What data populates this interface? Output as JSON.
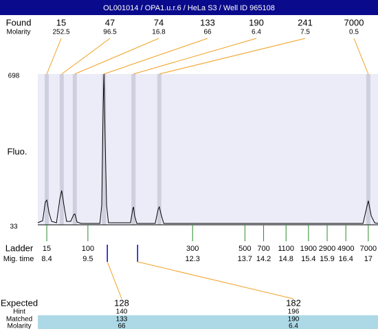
{
  "header": {
    "title": "OL001014 / OPA1.u.r.6 / HeLa S3 / Well ID 965108"
  },
  "found": {
    "label": "Found",
    "molarity_label": "Molarity",
    "peaks": [
      {
        "size": 15,
        "molarity": 252.5,
        "time": 8.4
      },
      {
        "size": 47,
        "molarity": 96.5,
        "time": 8.8
      },
      {
        "size": 74,
        "molarity": 16.8,
        "time": 9.15
      },
      {
        "size": 133,
        "molarity": 66,
        "time": 9.93
      },
      {
        "size": 190,
        "molarity": 6.4,
        "time": 10.72
      },
      {
        "size": 241,
        "molarity": 7.5,
        "time": 11.41
      },
      {
        "size": 7000,
        "molarity": 0.5,
        "time": 17
      }
    ]
  },
  "axis": {
    "label": "Fluo.",
    "ylim": [
      33,
      698
    ],
    "yticks": [
      698,
      33
    ],
    "xlim": [
      8.16,
      17.26
    ]
  },
  "trace": {
    "x": [
      8.16,
      8.29,
      8.36,
      8.4,
      8.46,
      8.53,
      8.66,
      8.75,
      8.8,
      8.86,
      8.93,
      9.04,
      9.12,
      9.15,
      9.21,
      9.32,
      9.82,
      9.87,
      9.91,
      9.93,
      9.96,
      10.0,
      10.05,
      10.64,
      10.7,
      10.72,
      10.75,
      10.81,
      11.3,
      11.38,
      11.41,
      11.47,
      11.53,
      16.86,
      16.95,
      17.0,
      17.08,
      17.17,
      17.26
    ],
    "y": [
      42,
      51,
      133,
      142,
      87,
      48,
      42,
      148,
      184,
      118,
      48,
      48,
      78,
      81,
      45,
      39,
      39,
      118,
      571,
      698,
      420,
      118,
      42,
      42,
      103,
      112,
      72,
      39,
      39,
      103,
      112,
      72,
      39,
      39,
      103,
      139,
      72,
      42,
      39
    ]
  },
  "ladder": {
    "label": "Ladder",
    "time_label": "Mig. time",
    "bands": [
      {
        "size": 15,
        "time": 8.4
      },
      {
        "size": 100,
        "time": 9.5
      },
      {
        "size": 300,
        "time": 12.3
      },
      {
        "size": 500,
        "time": 13.7
      },
      {
        "size": 700,
        "time": 14.2
      },
      {
        "size": 1100,
        "time": 14.8
      },
      {
        "size": 1900,
        "time": 15.4
      },
      {
        "size": 2900,
        "time": 15.9
      },
      {
        "size": 4900,
        "time": 16.4
      },
      {
        "size": 7000,
        "time": 17
      }
    ]
  },
  "expected": {
    "label": "Expected",
    "hint_label": "Hint",
    "matched_label": "Matched",
    "molarity_label": "Molarity",
    "peaks": [
      {
        "size": 128,
        "hint": 140,
        "matched": 133,
        "molarity": 66,
        "time": 10.02
      },
      {
        "size": 182,
        "hint": 196,
        "matched": 190,
        "molarity": 6.4,
        "time": 10.83
      }
    ]
  }
}
